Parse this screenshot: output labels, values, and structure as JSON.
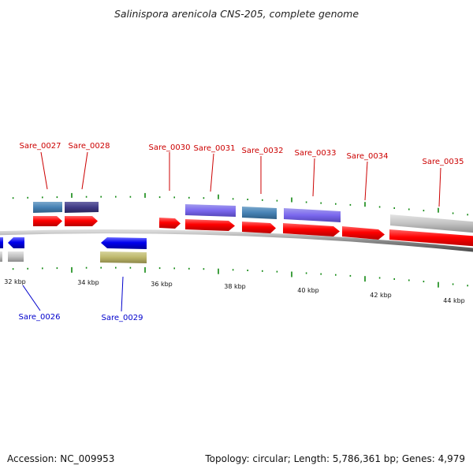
{
  "title": "Salinispora arenicola CNS-205, complete genome",
  "footer": {
    "accession": "Accession: NC_009953",
    "stats": "Topology: circular; Length: 5,786,361 bp; Genes: 4,979"
  },
  "scale_labels": [
    "32 kbp",
    "34 kbp",
    "36 kbp",
    "38 kbp",
    "40 kbp",
    "42 kbp",
    "44 kbp"
  ],
  "gene_labels": {
    "top": [
      "Sare_0027",
      "Sare_0028",
      "Sare_0030",
      "Sare_0031",
      "Sare_0032",
      "Sare_0033",
      "Sare_0034",
      "Sare_0035"
    ],
    "bottom": [
      "Sare_0026",
      "Sare_0029"
    ]
  },
  "colors": {
    "forward_label": "#cc0000",
    "reverse_label": "#0000cc",
    "cds_forward": "#ff0000",
    "cds_reverse": "#0000ee",
    "tick": "#118811",
    "backbone": "#888888"
  }
}
